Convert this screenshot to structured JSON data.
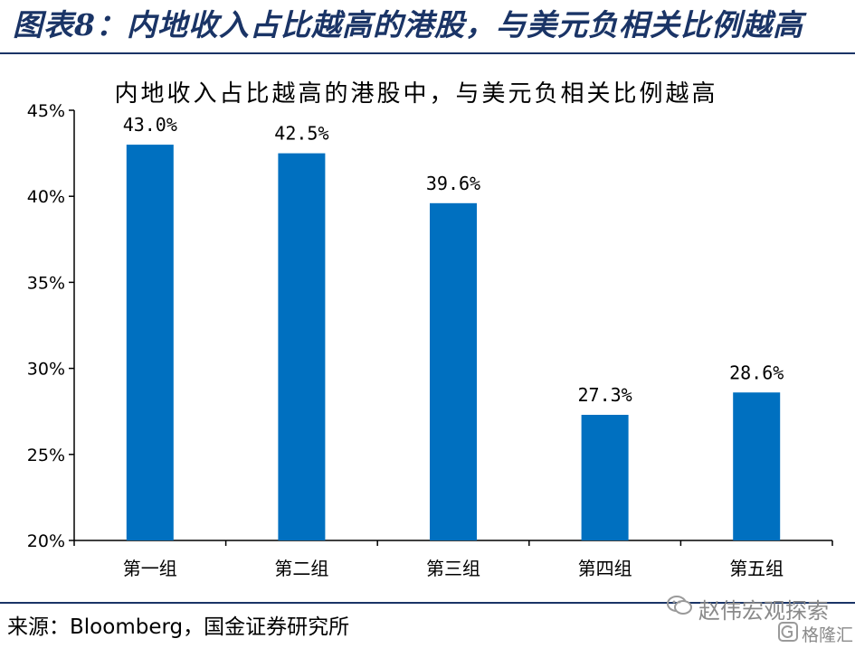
{
  "header": {
    "title": "图表8：内地收入占比越高的港股，与美元负相关比例越高"
  },
  "chart_data": {
    "type": "bar",
    "title": "内地收入占比越高的港股中，与美元负相关比例越高",
    "categories": [
      "第一组",
      "第二组",
      "第三组",
      "第四组",
      "第五组"
    ],
    "values": [
      43.0,
      42.5,
      39.6,
      27.3,
      28.6
    ],
    "value_labels": [
      "43.0%",
      "42.5%",
      "39.6%",
      "27.3%",
      "28.6%"
    ],
    "ylim": [
      20,
      45
    ],
    "yticks": [
      20,
      25,
      30,
      35,
      40,
      45
    ],
    "ytick_labels": [
      "20%",
      "25%",
      "30%",
      "35%",
      "40%",
      "45%"
    ],
    "xlabel": "",
    "ylabel": "",
    "grid": false,
    "bar_color": "#0070c0"
  },
  "footer": {
    "source": "来源：Bloomberg，国金证券研究所",
    "watermark": "赵伟宏观探索",
    "watermark_brand": "格隆汇"
  },
  "colors": {
    "accent": "#1a3466",
    "bar": "#0070c0"
  }
}
